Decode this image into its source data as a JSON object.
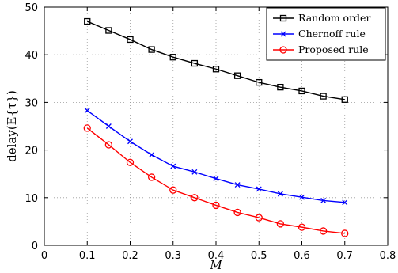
{
  "chart_data": {
    "type": "line",
    "title": "",
    "xlabel": "M",
    "ylabel": "delay(E{τ})",
    "xlim": [
      0,
      0.8
    ],
    "ylim": [
      0,
      50
    ],
    "xticks": [
      "0",
      "0.1",
      "0.2",
      "0.3",
      "0.4",
      "0.5",
      "0.6",
      "0.7",
      "0.8"
    ],
    "yticks": [
      "0",
      "10",
      "20",
      "30",
      "40",
      "50"
    ],
    "grid": true,
    "legend_position": "top-right",
    "x": [
      0.1,
      0.15,
      0.2,
      0.25,
      0.3,
      0.35,
      0.4,
      0.45,
      0.5,
      0.55,
      0.6,
      0.65,
      0.7
    ],
    "series": [
      {
        "name": "Random order",
        "color": "#000000",
        "marker": "square",
        "values": [
          47.0,
          45.1,
          43.2,
          41.1,
          39.5,
          38.2,
          37.0,
          35.6,
          34.2,
          33.2,
          32.4,
          31.3,
          30.6
        ]
      },
      {
        "name": "Chernoff rule",
        "color": "#0000ff",
        "marker": "x",
        "values": [
          28.3,
          25.0,
          21.8,
          19.0,
          16.6,
          15.4,
          14.0,
          12.7,
          11.8,
          10.8,
          10.1,
          9.4,
          9.0
        ]
      },
      {
        "name": "Proposed rule",
        "color": "#ff0000",
        "marker": "circle",
        "values": [
          24.6,
          21.1,
          17.4,
          14.3,
          11.6,
          10.0,
          8.4,
          6.9,
          5.8,
          4.5,
          3.8,
          3.0,
          2.5
        ]
      }
    ]
  }
}
